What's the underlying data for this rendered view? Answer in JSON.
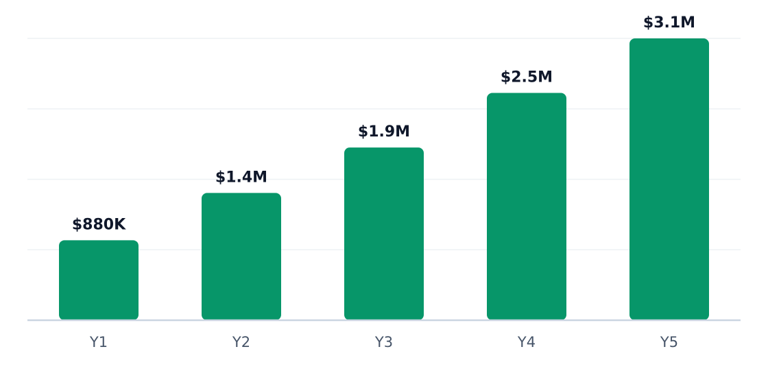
{
  "chart_data": {
    "type": "bar",
    "categories": [
      "Y1",
      "Y2",
      "Y3",
      "Y4",
      "Y5"
    ],
    "values": [
      880000,
      1400000,
      1900000,
      2500000,
      3100000
    ],
    "value_labels": [
      "$880K",
      "$1.4M",
      "$1.9M",
      "$2.5M",
      "$3.1M"
    ],
    "color": "#079669",
    "ylim": [
      0,
      3100000
    ],
    "yticks": [
      0,
      775000,
      1550000,
      2325000,
      3100000
    ],
    "grid": true
  }
}
